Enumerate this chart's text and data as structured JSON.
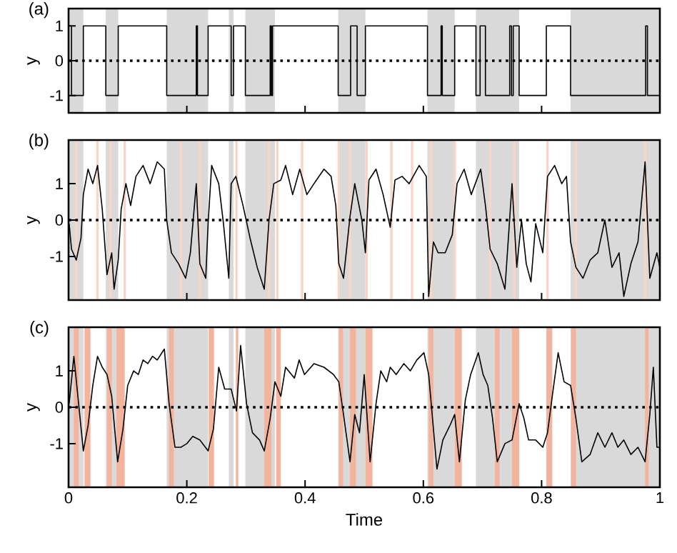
{
  "chart_data": [
    {
      "type": "step",
      "title": "(a)",
      "ylabel": "y",
      "xlim": [
        0,
        1
      ],
      "ylim": [
        -1.5,
        1.5
      ],
      "xticks": [
        0,
        0.2,
        0.4,
        0.6,
        0.8,
        1
      ],
      "yticks": [
        -1,
        0,
        1
      ],
      "tick_labels": "y",
      "ref_lines": [
        {
          "axis": "y",
          "value": 0,
          "line_style": "dotted",
          "color": "#000000"
        }
      ],
      "bands": [
        {
          "axis": "x",
          "from": 0,
          "to": 0.025,
          "color": "#d9d9d9"
        },
        {
          "axis": "x",
          "from": 0.063,
          "to": 0.084,
          "color": "#d9d9d9"
        },
        {
          "axis": "x",
          "from": 0.166,
          "to": 0.236,
          "color": "#d9d9d9"
        },
        {
          "axis": "x",
          "from": 0.271,
          "to": 0.279,
          "color": "#d9d9d9"
        },
        {
          "axis": "x",
          "from": 0.299,
          "to": 0.349,
          "color": "#d9d9d9"
        },
        {
          "axis": "x",
          "from": 0.456,
          "to": 0.502,
          "color": "#d9d9d9"
        },
        {
          "axis": "x",
          "from": 0.607,
          "to": 0.653,
          "color": "#d9d9d9"
        },
        {
          "axis": "x",
          "from": 0.689,
          "to": 0.762,
          "color": "#d9d9d9"
        },
        {
          "axis": "x",
          "from": 0.849,
          "to": 1,
          "color": "#d9d9d9"
        }
      ],
      "x": [
        0,
        0.005,
        0.025,
        0.063,
        0.084,
        0.166,
        0.216,
        0.218,
        0.236,
        0.275,
        0.279,
        0.299,
        0.341,
        0.343,
        0.345,
        0.456,
        0.477,
        0.488,
        0.502,
        0.607,
        0.63,
        0.632,
        0.653,
        0.689,
        0.696,
        0.705,
        0.746,
        0.749,
        0.752,
        0.762,
        0.808,
        0.849,
        0.976,
        0.979,
        1
      ],
      "series": [
        {
          "color": "#000000",
          "values": [
            1,
            -1,
            1,
            -1,
            1,
            -1,
            1,
            -1,
            1,
            -1,
            1,
            -1,
            1,
            -1,
            1,
            -1,
            1,
            -1,
            1,
            -1,
            1,
            -1,
            1,
            -1,
            1,
            -1,
            1,
            -1,
            1,
            -1,
            1,
            -1,
            1,
            -1,
            -1
          ]
        }
      ]
    },
    {
      "type": "line",
      "title": "(b)",
      "ylabel": "y",
      "xlim": [
        0,
        1
      ],
      "ylim": [
        -2.2,
        2.2
      ],
      "xticks": [
        0,
        0.2,
        0.4,
        0.6,
        0.8,
        1
      ],
      "yticks": [
        -1,
        0,
        1
      ],
      "tick_labels": "y",
      "ref_lines": [
        {
          "axis": "y",
          "value": 0,
          "line_style": "dotted",
          "color": "#000000"
        }
      ],
      "bands": [
        {
          "axis": "x",
          "from": 0,
          "to": 0.025,
          "color": "#d9d9d9"
        },
        {
          "axis": "x",
          "from": 0.063,
          "to": 0.084,
          "color": "#d9d9d9"
        },
        {
          "axis": "x",
          "from": 0.166,
          "to": 0.236,
          "color": "#d9d9d9"
        },
        {
          "axis": "x",
          "from": 0.271,
          "to": 0.279,
          "color": "#d9d9d9"
        },
        {
          "axis": "x",
          "from": 0.299,
          "to": 0.349,
          "color": "#d9d9d9"
        },
        {
          "axis": "x",
          "from": 0.456,
          "to": 0.502,
          "color": "#d9d9d9"
        },
        {
          "axis": "x",
          "from": 0.607,
          "to": 0.653,
          "color": "#d9d9d9"
        },
        {
          "axis": "x",
          "from": 0.689,
          "to": 0.762,
          "color": "#d9d9d9"
        },
        {
          "axis": "x",
          "from": 0.849,
          "to": 1,
          "color": "#d9d9d9"
        },
        {
          "axis": "x",
          "from": 0.011,
          "to": 0.015,
          "color": "#f9d5c6"
        },
        {
          "axis": "x",
          "from": 0.047,
          "to": 0.051,
          "color": "#f9d5c6"
        },
        {
          "axis": "x",
          "from": 0.069,
          "to": 0.073,
          "color": "#f9d5c6"
        },
        {
          "axis": "x",
          "from": 0.093,
          "to": 0.097,
          "color": "#f9d5c6"
        },
        {
          "axis": "x",
          "from": 0.188,
          "to": 0.192,
          "color": "#f9d5c6"
        },
        {
          "axis": "x",
          "from": 0.22,
          "to": 0.224,
          "color": "#f9d5c6"
        },
        {
          "axis": "x",
          "from": 0.282,
          "to": 0.286,
          "color": "#f9d5c6"
        },
        {
          "axis": "x",
          "from": 0.337,
          "to": 0.341,
          "color": "#f9d5c6"
        },
        {
          "axis": "x",
          "from": 0.351,
          "to": 0.355,
          "color": "#f9d5c6"
        },
        {
          "axis": "x",
          "from": 0.393,
          "to": 0.397,
          "color": "#f9d5c6"
        },
        {
          "axis": "x",
          "from": 0.455,
          "to": 0.459,
          "color": "#f9d5c6"
        },
        {
          "axis": "x",
          "from": 0.474,
          "to": 0.478,
          "color": "#f9d5c6"
        },
        {
          "axis": "x",
          "from": 0.502,
          "to": 0.506,
          "color": "#f9d5c6"
        },
        {
          "axis": "x",
          "from": 0.544,
          "to": 0.548,
          "color": "#f9d5c6"
        },
        {
          "axis": "x",
          "from": 0.579,
          "to": 0.583,
          "color": "#f9d5c6"
        },
        {
          "axis": "x",
          "from": 0.611,
          "to": 0.615,
          "color": "#f9d5c6"
        },
        {
          "axis": "x",
          "from": 0.651,
          "to": 0.655,
          "color": "#f9d5c6"
        },
        {
          "axis": "x",
          "from": 0.711,
          "to": 0.715,
          "color": "#f9d5c6"
        },
        {
          "axis": "x",
          "from": 0.752,
          "to": 0.756,
          "color": "#f9d5c6"
        },
        {
          "axis": "x",
          "from": 0.808,
          "to": 0.812,
          "color": "#f9d5c6"
        },
        {
          "axis": "x",
          "from": 0.856,
          "to": 0.86,
          "color": "#f9d5c6"
        },
        {
          "axis": "x",
          "from": 0.973,
          "to": 0.977,
          "color": "#f9d5c6"
        }
      ],
      "x": [
        0.001,
        0.005,
        0.013,
        0.021,
        0.025,
        0.033,
        0.041,
        0.049,
        0.057,
        0.065,
        0.073,
        0.077,
        0.084,
        0.089,
        0.097,
        0.105,
        0.114,
        0.126,
        0.138,
        0.15,
        0.162,
        0.166,
        0.174,
        0.186,
        0.198,
        0.206,
        0.216,
        0.222,
        0.232,
        0.236,
        0.242,
        0.254,
        0.262,
        0.271,
        0.275,
        0.283,
        0.295,
        0.307,
        0.319,
        0.331,
        0.339,
        0.347,
        0.359,
        0.367,
        0.379,
        0.391,
        0.403,
        0.415,
        0.432,
        0.444,
        0.452,
        0.457,
        0.465,
        0.476,
        0.484,
        0.496,
        0.502,
        0.508,
        0.52,
        0.532,
        0.544,
        0.552,
        0.564,
        0.576,
        0.593,
        0.605,
        0.609,
        0.617,
        0.625,
        0.637,
        0.649,
        0.657,
        0.669,
        0.681,
        0.697,
        0.705,
        0.713,
        0.725,
        0.738,
        0.75,
        0.758,
        0.766,
        0.774,
        0.782,
        0.79,
        0.802,
        0.81,
        0.822,
        0.834,
        0.842,
        0.849,
        0.858,
        0.87,
        0.882,
        0.895,
        0.907,
        0.919,
        0.931,
        0.939,
        0.951,
        0.963,
        0.975,
        0.983,
        0.995,
        1
      ],
      "series": [
        {
          "color": "#000000",
          "values": [
            -0.1,
            -0.8,
            -1.1,
            -0.5,
            0.7,
            1.4,
            1.0,
            1.5,
            0.3,
            -1.5,
            -0.9,
            -1.9,
            -1.1,
            0.3,
            1.0,
            0.4,
            1.2,
            1.5,
            1.0,
            1.6,
            1.4,
            0.0,
            -0.9,
            -1.2,
            -1.6,
            -0.9,
            1.0,
            -1.2,
            -1.6,
            -0.1,
            1.5,
            1.0,
            -0.1,
            -1.6,
            1.0,
            1.2,
            0.4,
            -0.5,
            -1.3,
            -1.9,
            0.0,
            1.0,
            1.1,
            1.5,
            0.7,
            1.4,
            0.7,
            1.0,
            1.4,
            1.2,
            0.4,
            -1.2,
            -1.6,
            0.1,
            1.0,
            0.0,
            -0.9,
            1.1,
            1.4,
            0.7,
            -0.2,
            1.1,
            1.2,
            1.0,
            1.5,
            1.2,
            -2.1,
            -0.6,
            -0.9,
            -0.9,
            -0.4,
            1.0,
            1.4,
            0.7,
            1.4,
            0.4,
            -0.8,
            -1.2,
            -1.9,
            1.0,
            -1.3,
            0.0,
            -1.2,
            -1.7,
            -0.1,
            -0.9,
            1.2,
            1.5,
            1.0,
            1.2,
            -0.6,
            -1.3,
            -1.6,
            -1.1,
            -0.9,
            0.0,
            -1.3,
            -0.9,
            -2.1,
            -1.2,
            -0.6,
            1.6,
            -1.6,
            -0.9,
            -1.3
          ]
        }
      ]
    },
    {
      "type": "line",
      "title": "(c)",
      "ylabel": "y",
      "xlabel": "Time",
      "xlim": [
        0,
        1
      ],
      "ylim": [
        -2.2,
        2.2
      ],
      "xticks": [
        0,
        0.2,
        0.4,
        0.6,
        0.8,
        1
      ],
      "yticks": [
        -1,
        0,
        1
      ],
      "ref_lines": [
        {
          "axis": "y",
          "value": 0,
          "line_style": "dotted",
          "color": "#000000"
        }
      ],
      "bands": [
        {
          "axis": "x",
          "from": 0,
          "to": 0.025,
          "color": "#d9d9d9"
        },
        {
          "axis": "x",
          "from": 0.063,
          "to": 0.084,
          "color": "#d9d9d9"
        },
        {
          "axis": "x",
          "from": 0.166,
          "to": 0.236,
          "color": "#d9d9d9"
        },
        {
          "axis": "x",
          "from": 0.271,
          "to": 0.279,
          "color": "#d9d9d9"
        },
        {
          "axis": "x",
          "from": 0.299,
          "to": 0.349,
          "color": "#d9d9d9"
        },
        {
          "axis": "x",
          "from": 0.456,
          "to": 0.502,
          "color": "#d9d9d9"
        },
        {
          "axis": "x",
          "from": 0.607,
          "to": 0.653,
          "color": "#d9d9d9"
        },
        {
          "axis": "x",
          "from": 0.689,
          "to": 0.762,
          "color": "#d9d9d9"
        },
        {
          "axis": "x",
          "from": 0.849,
          "to": 1,
          "color": "#d9d9d9"
        },
        {
          "axis": "x",
          "from": 0.009,
          "to": 0.017,
          "color": "#f4b49c"
        },
        {
          "axis": "x",
          "from": 0.027,
          "to": 0.037,
          "color": "#f4b49c"
        },
        {
          "axis": "x",
          "from": 0.065,
          "to": 0.073,
          "color": "#f4b49c"
        },
        {
          "axis": "x",
          "from": 0.081,
          "to": 0.095,
          "color": "#f4b49c"
        },
        {
          "axis": "x",
          "from": 0.17,
          "to": 0.178,
          "color": "#f4b49c"
        },
        {
          "axis": "x",
          "from": 0.237,
          "to": 0.246,
          "color": "#f4b49c"
        },
        {
          "axis": "x",
          "from": 0.283,
          "to": 0.287,
          "color": "#f4b49c"
        },
        {
          "axis": "x",
          "from": 0.331,
          "to": 0.343,
          "color": "#f4b49c"
        },
        {
          "axis": "x",
          "from": 0.351,
          "to": 0.359,
          "color": "#f4b49c"
        },
        {
          "axis": "x",
          "from": 0.457,
          "to": 0.464,
          "color": "#f4b49c"
        },
        {
          "axis": "x",
          "from": 0.476,
          "to": 0.486,
          "color": "#f4b49c"
        },
        {
          "axis": "x",
          "from": 0.502,
          "to": 0.514,
          "color": "#f4b49c"
        },
        {
          "axis": "x",
          "from": 0.609,
          "to": 0.617,
          "color": "#f4b49c"
        },
        {
          "axis": "x",
          "from": 0.653,
          "to": 0.665,
          "color": "#f4b49c"
        },
        {
          "axis": "x",
          "from": 0.721,
          "to": 0.729,
          "color": "#f4b49c"
        },
        {
          "axis": "x",
          "from": 0.75,
          "to": 0.762,
          "color": "#f4b49c"
        },
        {
          "axis": "x",
          "from": 0.808,
          "to": 0.818,
          "color": "#f4b49c"
        },
        {
          "axis": "x",
          "from": 0.85,
          "to": 0.858,
          "color": "#f4b49c"
        },
        {
          "axis": "x",
          "from": 0.975,
          "to": 0.981,
          "color": "#f4b49c"
        }
      ],
      "x": [
        0.001,
        0.009,
        0.017,
        0.025,
        0.033,
        0.041,
        0.049,
        0.057,
        0.065,
        0.073,
        0.083,
        0.092,
        0.1,
        0.11,
        0.118,
        0.126,
        0.134,
        0.142,
        0.15,
        0.162,
        0.17,
        0.18,
        0.19,
        0.2,
        0.21,
        0.222,
        0.236,
        0.245,
        0.254,
        0.264,
        0.275,
        0.284,
        0.291,
        0.301,
        0.311,
        0.323,
        0.331,
        0.341,
        0.349,
        0.359,
        0.367,
        0.382,
        0.39,
        0.399,
        0.415,
        0.432,
        0.448,
        0.457,
        0.465,
        0.476,
        0.484,
        0.492,
        0.5,
        0.51,
        0.52,
        0.528,
        0.538,
        0.544,
        0.554,
        0.567,
        0.578,
        0.589,
        0.601,
        0.609,
        0.623,
        0.633,
        0.645,
        0.653,
        0.661,
        0.671,
        0.68,
        0.693,
        0.701,
        0.709,
        0.717,
        0.725,
        0.738,
        0.75,
        0.762,
        0.77,
        0.778,
        0.79,
        0.802,
        0.81,
        0.818,
        0.828,
        0.838,
        0.849,
        0.858,
        0.868,
        0.882,
        0.895,
        0.907,
        0.919,
        0.929,
        0.939,
        0.951,
        0.963,
        0.975,
        0.983,
        0.989,
        0.995,
        1
      ],
      "series": [
        {
          "color": "#000000",
          "values": [
            0.1,
            1.4,
            0.1,
            -1.2,
            -0.5,
            0.6,
            1.4,
            1.1,
            0.9,
            0.3,
            -1.5,
            -0.6,
            0.6,
            1.0,
            0.9,
            1.3,
            1.2,
            1.4,
            1.3,
            1.6,
            0.1,
            -1.1,
            -1.1,
            -1.0,
            -0.8,
            -0.9,
            -1.2,
            -0.6,
            1.1,
            0.5,
            0.5,
            -0.1,
            1.7,
            0.1,
            -0.7,
            -0.9,
            -1.2,
            -0.3,
            0.7,
            0.3,
            1.1,
            0.8,
            1.3,
            0.9,
            1.2,
            1.1,
            0.9,
            0.7,
            -0.2,
            -1.5,
            -0.2,
            -0.7,
            0.9,
            -1.5,
            0.1,
            1.0,
            0.7,
            1.1,
            0.9,
            1.2,
            1.0,
            1.3,
            1.5,
            0.9,
            -1.7,
            -0.9,
            -0.5,
            -0.2,
            -1.5,
            0.2,
            0.9,
            1.5,
            0.9,
            0.6,
            -0.3,
            -1.5,
            -1.0,
            -0.9,
            0.1,
            -0.3,
            -0.9,
            -0.9,
            -1.1,
            -0.7,
            0.3,
            1.5,
            0.7,
            0.6,
            -0.3,
            -1.5,
            -1.3,
            -0.7,
            -1.1,
            -0.7,
            -1.1,
            -0.9,
            -1.3,
            -1.1,
            -1.5,
            -0.2,
            1.1,
            -1.1,
            -1.1
          ]
        }
      ]
    }
  ]
}
